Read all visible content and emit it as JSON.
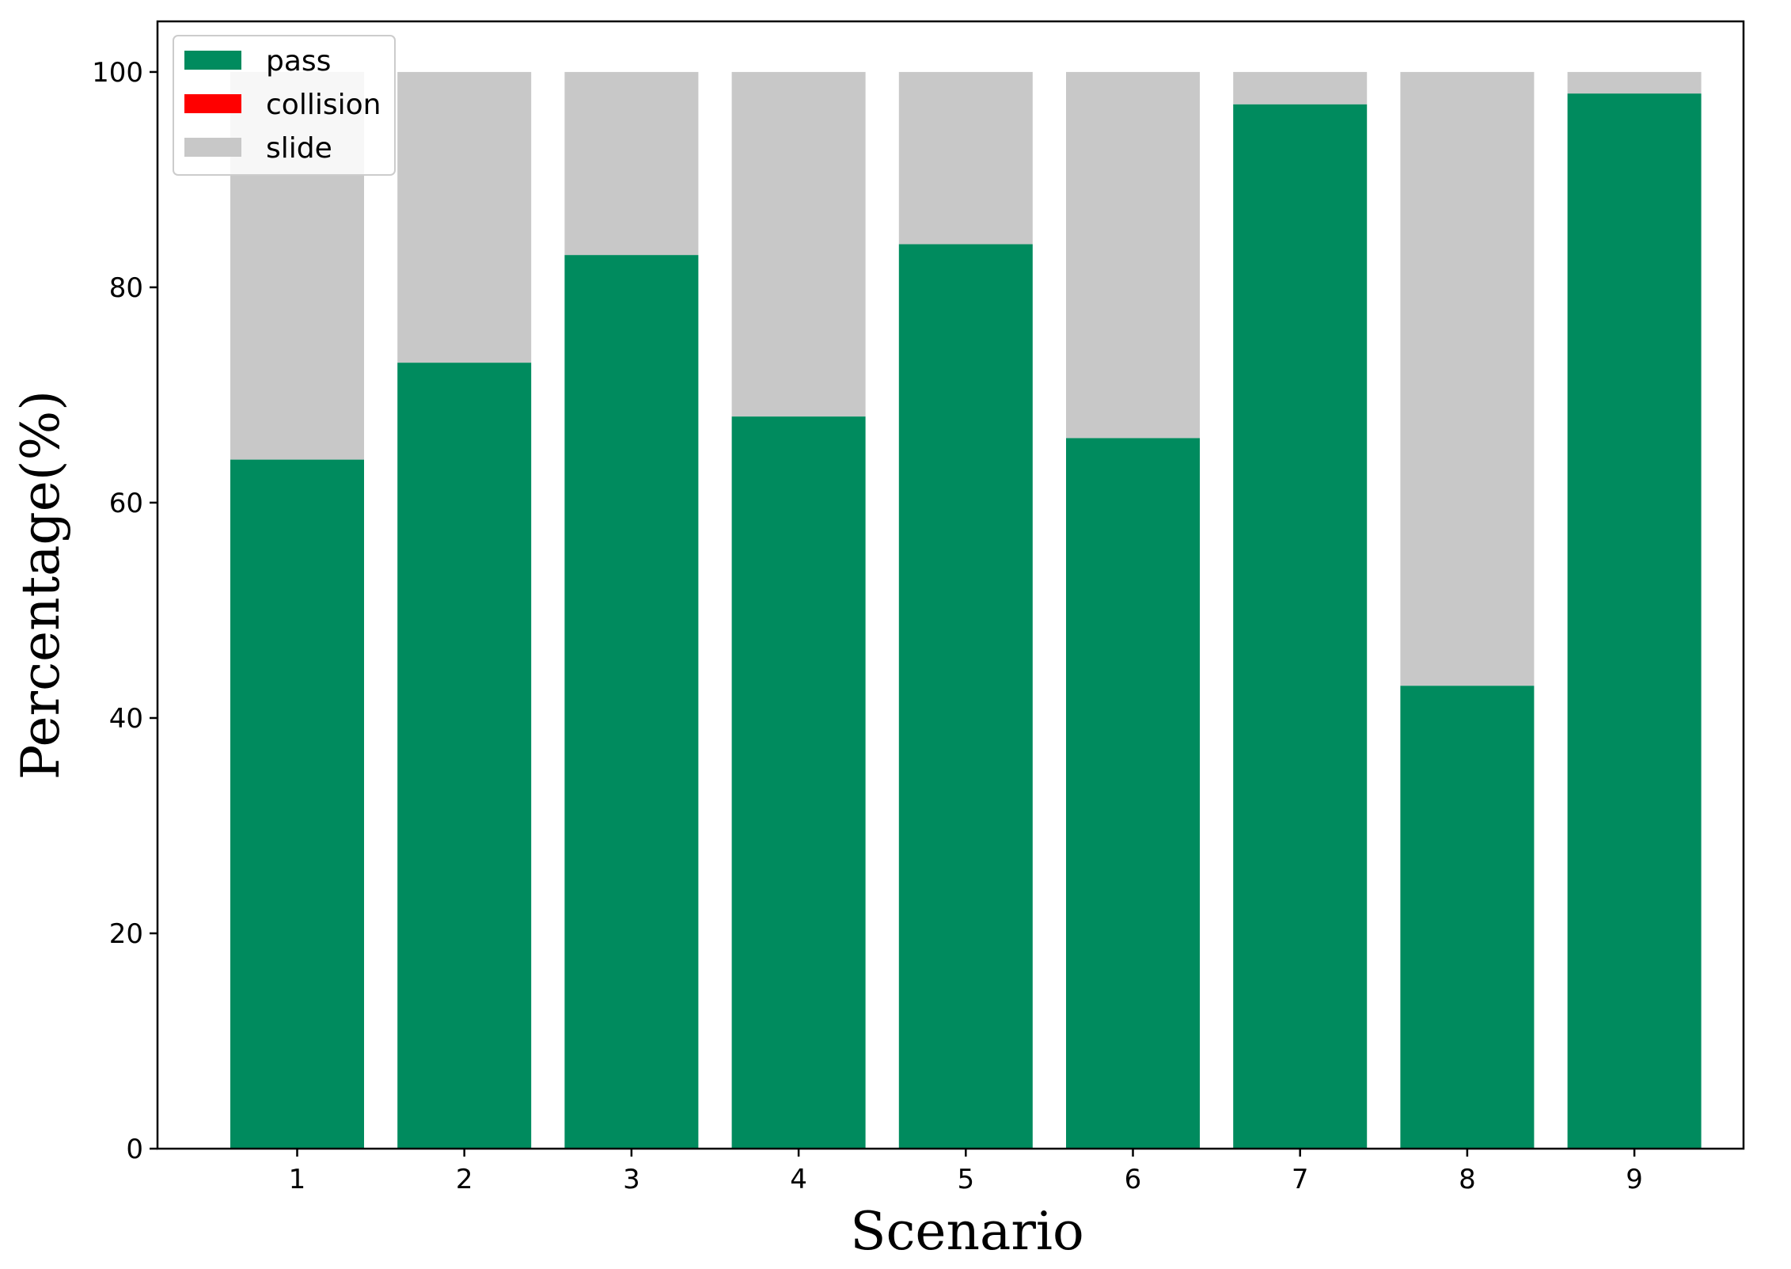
{
  "chart_data": {
    "type": "bar",
    "stacked": true,
    "categories": [
      "1",
      "2",
      "3",
      "4",
      "5",
      "6",
      "7",
      "8",
      "9"
    ],
    "series": [
      {
        "name": "pass",
        "color": "#008B5E",
        "values": [
          64,
          73,
          83,
          68,
          84,
          66,
          97,
          43,
          98
        ]
      },
      {
        "name": "collision",
        "color": "#FF0000",
        "values": [
          0,
          0,
          0,
          0,
          0,
          0,
          0,
          0,
          0
        ]
      },
      {
        "name": "slide",
        "color": "#C8C8C8",
        "values": [
          36,
          27,
          17,
          32,
          16,
          34,
          3,
          57,
          2
        ]
      }
    ],
    "xlabel": "Scenario",
    "ylabel": "Percentage(%)",
    "ylim": [
      0,
      104.7
    ],
    "yticks": [
      0,
      20,
      40,
      60,
      80,
      100
    ],
    "grid": false,
    "legend_position": "top-left"
  }
}
